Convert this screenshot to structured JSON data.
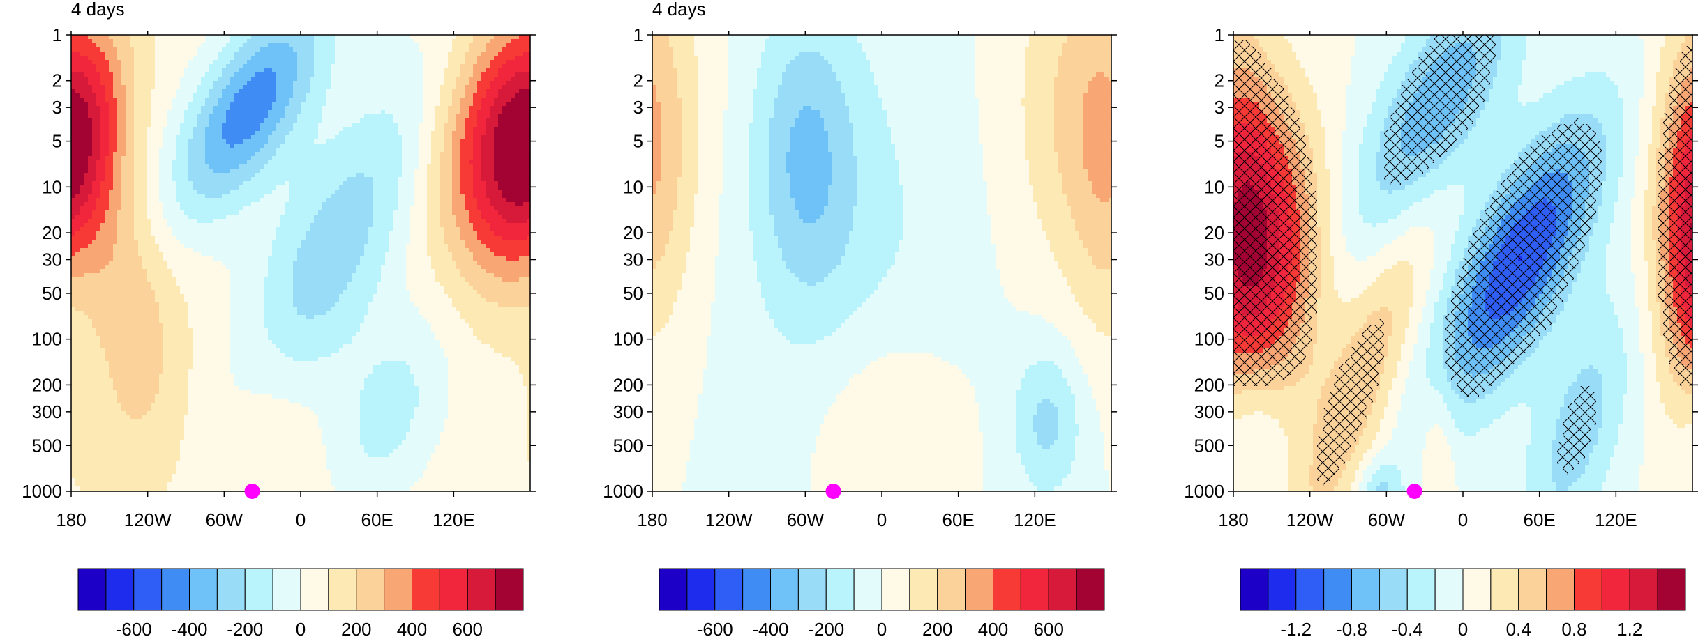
{
  "figure": {
    "colormap": [
      "#1c00c8",
      "#1e2cee",
      "#2e5ef5",
      "#3f8cf5",
      "#6fc2f8",
      "#99dcf8",
      "#b9f3fb",
      "#e4fbfc",
      "#fffae8",
      "#fde9b4",
      "#fbd29a",
      "#f8a774",
      "#f73a36",
      "#f1253c",
      "#d71a3a",
      "#a30333"
    ],
    "hatch_color": "#000000",
    "marker_color": "#ff00ff"
  },
  "chart_data": [
    {
      "type": "heatmap",
      "title": "4 days",
      "xticks": [
        "180",
        "120W",
        "60W",
        "0",
        "60E",
        "120E"
      ],
      "xtick_lon": [
        -180,
        -120,
        -60,
        0,
        60,
        120
      ],
      "xlim": [
        -180,
        180
      ],
      "yticks": [
        "1",
        "2",
        "3",
        "5",
        "10",
        "20",
        "30",
        "50",
        "100",
        "200",
        "300",
        "500",
        "1000"
      ],
      "ytick_values": [
        1,
        2,
        3,
        5,
        10,
        20,
        30,
        50,
        100,
        200,
        300,
        500,
        1000
      ],
      "ylim": [
        1,
        1000
      ],
      "y_scale": "log",
      "y_inverted": true,
      "marker": {
        "lon": -38,
        "level": 1000
      },
      "colorbar": {
        "levels": [
          -700,
          -600,
          -500,
          -400,
          -300,
          -200,
          -100,
          0,
          100,
          200,
          300,
          400,
          500,
          600,
          700
        ],
        "labels": [
          "-600",
          "-400",
          "-200",
          "0",
          "200",
          "400",
          "600"
        ],
        "label_values": [
          -600,
          -400,
          -200,
          0,
          200,
          400,
          600
        ]
      },
      "field": {
        "peaks": [
          {
            "lon": -180,
            "level": 7,
            "amp": 440,
            "slon": 25,
            "slog": 0.55,
            "tilt": -0.25
          },
          {
            "lon": 150,
            "level": 4,
            "amp": 450,
            "slon": 32,
            "slog": 0.55,
            "tilt": -0.25
          },
          {
            "lon": -40,
            "level": 3,
            "amp": -520,
            "slon": 32,
            "slog": 0.5,
            "tilt": -0.55
          },
          {
            "lon": 20,
            "level": 30,
            "amp": -330,
            "slon": 40,
            "slog": 0.85,
            "tilt": -0.55
          },
          {
            "lon": 70,
            "level": 300,
            "amp": -200,
            "slon": 30,
            "slog": 0.45,
            "tilt": -0.3
          },
          {
            "lon": -140,
            "level": 40,
            "amp": 220,
            "slon": 30,
            "slog": 0.85,
            "tilt": 0.25
          },
          {
            "lon": -30,
            "level": 250,
            "amp": 130,
            "slon": 30,
            "slog": 0.5,
            "tilt": 0.0
          },
          {
            "lon": -150,
            "level": 600,
            "amp": 60,
            "slon": 30,
            "slog": 0.4,
            "tilt": 0.0
          }
        ],
        "base": 60
      }
    },
    {
      "type": "heatmap",
      "title": "4 days",
      "xticks": [
        "180",
        "120W",
        "60W",
        "0",
        "60E",
        "120E"
      ],
      "xtick_lon": [
        -180,
        -120,
        -60,
        0,
        60,
        120
      ],
      "xlim": [
        -180,
        180
      ],
      "yticks": [
        "1",
        "2",
        "3",
        "5",
        "10",
        "20",
        "30",
        "50",
        "100",
        "200",
        "300",
        "500",
        "1000"
      ],
      "ytick_values": [
        1,
        2,
        3,
        5,
        10,
        20,
        30,
        50,
        100,
        200,
        300,
        500,
        1000
      ],
      "ylim": [
        1,
        1000
      ],
      "y_scale": "log",
      "y_inverted": true,
      "marker": {
        "lon": -38,
        "level": 1000
      },
      "colorbar": {
        "levels": [
          -700,
          -600,
          -500,
          -400,
          -300,
          -200,
          -100,
          0,
          100,
          200,
          300,
          400,
          500,
          600,
          700
        ],
        "labels": [
          "-600",
          "-400",
          "-200",
          "0",
          "200",
          "400",
          "600"
        ],
        "label_values": [
          -600,
          -400,
          -200,
          0,
          200,
          400,
          600
        ]
      },
      "field": {
        "peaks": [
          {
            "lon": -60,
            "level": 6,
            "amp": -260,
            "slon": 28,
            "slog": 0.65,
            "tilt": 0.0
          },
          {
            "lon": 130,
            "level": 350,
            "amp": -230,
            "slon": 20,
            "slog": 0.35,
            "tilt": 0.0
          },
          {
            "lon": 160,
            "level": 3,
            "amp": 230,
            "slon": 40,
            "slog": 0.8,
            "tilt": 0.0
          },
          {
            "lon": 0,
            "level": 400,
            "amp": 170,
            "slon": 42,
            "slog": 0.55,
            "tilt": 0.0
          },
          {
            "lon": -180,
            "level": 10,
            "amp": 150,
            "slon": 22,
            "slog": 0.8,
            "tilt": 0.0
          },
          {
            "lon": -20,
            "level": 40,
            "amp": -130,
            "slon": 60,
            "slog": 1.2,
            "tilt": 0.0
          }
        ],
        "base": 0
      }
    },
    {
      "type": "heatmap",
      "title": "",
      "xticks": [
        "180",
        "120W",
        "60W",
        "0",
        "60E",
        "120E"
      ],
      "xtick_lon": [
        -180,
        -120,
        -60,
        0,
        60,
        120
      ],
      "xlim": [
        -180,
        180
      ],
      "yticks": [
        "1",
        "2",
        "3",
        "5",
        "10",
        "20",
        "30",
        "50",
        "100",
        "200",
        "300",
        "500",
        "1000"
      ],
      "ytick_values": [
        1,
        2,
        3,
        5,
        10,
        20,
        30,
        50,
        100,
        200,
        300,
        500,
        1000
      ],
      "ylim": [
        1,
        1000
      ],
      "y_scale": "log",
      "y_inverted": true,
      "marker": {
        "lon": -38,
        "level": 1000
      },
      "hatched": true,
      "colorbar": {
        "levels": [
          -1.4,
          -1.2,
          -1.0,
          -0.8,
          -0.6,
          -0.4,
          -0.2,
          0,
          0.2,
          0.4,
          0.6,
          0.8,
          1.0,
          1.2,
          1.4
        ],
        "labels": [
          "-1.2",
          "-0.8",
          "-0.4",
          "0",
          "0.4",
          "0.8",
          "1.2"
        ],
        "label_values": [
          -1.2,
          -0.8,
          -0.4,
          0,
          0.4,
          0.8,
          1.2
        ]
      },
      "field": {
        "peaks": [
          {
            "lon": -150,
            "level": 25,
            "amp": 1.05,
            "slon": 30,
            "slog": 0.7,
            "tilt": 0.0
          },
          {
            "lon": -80,
            "level": 200,
            "amp": 0.55,
            "slon": 22,
            "slog": 0.9,
            "tilt": -0.4
          },
          {
            "lon": 180,
            "level": 15,
            "amp": 0.8,
            "slon": 22,
            "slog": 0.9,
            "tilt": 0.0
          },
          {
            "lon": 45,
            "level": 30,
            "amp": -1.2,
            "slon": 32,
            "slog": 0.65,
            "tilt": -0.5
          },
          {
            "lon": -20,
            "level": 3,
            "amp": -0.8,
            "slon": 32,
            "slog": 0.6,
            "tilt": -0.5
          },
          {
            "lon": 90,
            "level": 400,
            "amp": -0.5,
            "slon": 25,
            "slog": 0.6,
            "tilt": -0.3
          },
          {
            "lon": -65,
            "level": 1000,
            "amp": -0.45,
            "slon": 12,
            "slog": 0.15,
            "tilt": 0.0
          },
          {
            "lon": -165,
            "level": 350,
            "amp": -0.3,
            "slon": 18,
            "slog": 0.35,
            "tilt": 0.0
          },
          {
            "lon": -20,
            "level": 500,
            "amp": 0.3,
            "slon": 10,
            "slog": 0.35,
            "tilt": 0.0
          }
        ],
        "base": 0,
        "hatch_threshold": 0.45
      }
    }
  ]
}
